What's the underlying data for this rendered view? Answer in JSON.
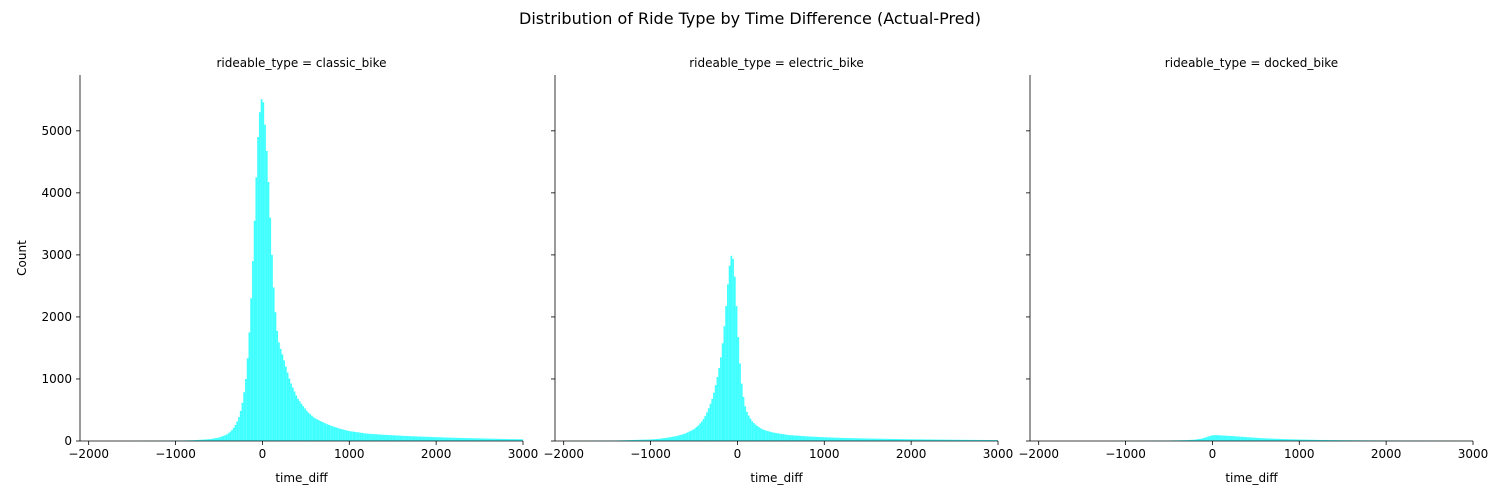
{
  "chart_data": {
    "type": "bar",
    "title": "Distribution of Ride Type by Time Difference (Actual-Pred)",
    "xlabel": "time_diff",
    "ylabel": "Count",
    "xlim": [
      -2100,
      3000
    ],
    "ylim": [
      0,
      5900
    ],
    "xticks": [
      -2000,
      -1000,
      0,
      1000,
      2000,
      3000
    ],
    "xtick_labels": [
      "−2000",
      "−1000",
      "0",
      "1000",
      "2000",
      "3000"
    ],
    "yticks": [
      0,
      1000,
      2000,
      3000,
      4000,
      5000
    ],
    "ytick_labels": [
      "0",
      "1000",
      "2000",
      "3000",
      "4000",
      "5000"
    ],
    "grid": false,
    "bar_color": "#00ffff",
    "bar_opacity": 0.75,
    "bin_width": 20,
    "panels": [
      {
        "title": "rideable_type = classic_bike",
        "anchors": [
          [
            -2100,
            0
          ],
          [
            -1300,
            2
          ],
          [
            -1000,
            6
          ],
          [
            -800,
            12
          ],
          [
            -600,
            30
          ],
          [
            -500,
            55
          ],
          [
            -400,
            110
          ],
          [
            -340,
            190
          ],
          [
            -300,
            280
          ],
          [
            -260,
            420
          ],
          [
            -220,
            680
          ],
          [
            -190,
            1000
          ],
          [
            -160,
            1500
          ],
          [
            -140,
            2000
          ],
          [
            -120,
            2600
          ],
          [
            -100,
            3200
          ],
          [
            -80,
            3900
          ],
          [
            -60,
            4600
          ],
          [
            -40,
            5200
          ],
          [
            -20,
            5400
          ],
          [
            0,
            5620
          ],
          [
            20,
            5300
          ],
          [
            40,
            4900
          ],
          [
            60,
            4450
          ],
          [
            80,
            3900
          ],
          [
            100,
            3300
          ],
          [
            120,
            2700
          ],
          [
            140,
            2250
          ],
          [
            160,
            1900
          ],
          [
            180,
            1650
          ],
          [
            200,
            1530
          ],
          [
            240,
            1350
          ],
          [
            280,
            1150
          ],
          [
            320,
            960
          ],
          [
            360,
            830
          ],
          [
            400,
            700
          ],
          [
            460,
            580
          ],
          [
            520,
            470
          ],
          [
            600,
            370
          ],
          [
            700,
            300
          ],
          [
            800,
            240
          ],
          [
            900,
            195
          ],
          [
            1000,
            160
          ],
          [
            1100,
            140
          ],
          [
            1200,
            120
          ],
          [
            1400,
            100
          ],
          [
            1600,
            85
          ],
          [
            1800,
            72
          ],
          [
            2000,
            62
          ],
          [
            2200,
            52
          ],
          [
            2500,
            42
          ],
          [
            2800,
            32
          ],
          [
            3000,
            28
          ]
        ]
      },
      {
        "title": "rideable_type = electric_bike",
        "anchors": [
          [
            -2100,
            0
          ],
          [
            -1800,
            3
          ],
          [
            -1400,
            8
          ],
          [
            -1000,
            25
          ],
          [
            -900,
            35
          ],
          [
            -800,
            55
          ],
          [
            -700,
            80
          ],
          [
            -600,
            120
          ],
          [
            -500,
            190
          ],
          [
            -450,
            250
          ],
          [
            -400,
            330
          ],
          [
            -360,
            430
          ],
          [
            -320,
            560
          ],
          [
            -280,
            720
          ],
          [
            -240,
            960
          ],
          [
            -200,
            1250
          ],
          [
            -180,
            1450
          ],
          [
            -160,
            1700
          ],
          [
            -140,
            2000
          ],
          [
            -120,
            2350
          ],
          [
            -100,
            2700
          ],
          [
            -80,
            2950
          ],
          [
            -60,
            3020
          ],
          [
            -40,
            2850
          ],
          [
            -20,
            2450
          ],
          [
            0,
            1900
          ],
          [
            20,
            1450
          ],
          [
            40,
            1050
          ],
          [
            60,
            800
          ],
          [
            80,
            620
          ],
          [
            100,
            500
          ],
          [
            140,
            380
          ],
          [
            180,
            300
          ],
          [
            240,
            230
          ],
          [
            300,
            180
          ],
          [
            400,
            140
          ],
          [
            500,
            115
          ],
          [
            600,
            95
          ],
          [
            800,
            75
          ],
          [
            1000,
            60
          ],
          [
            1200,
            50
          ],
          [
            1500,
            40
          ],
          [
            2000,
            28
          ],
          [
            2500,
            20
          ],
          [
            3000,
            15
          ]
        ]
      },
      {
        "title": "rideable_type = docked_bike",
        "anchors": [
          [
            -2100,
            0
          ],
          [
            -1200,
            1
          ],
          [
            -800,
            4
          ],
          [
            -500,
            8
          ],
          [
            -300,
            14
          ],
          [
            -200,
            22
          ],
          [
            -120,
            40
          ],
          [
            -60,
            65
          ],
          [
            -20,
            85
          ],
          [
            0,
            92
          ],
          [
            40,
            95
          ],
          [
            100,
            90
          ],
          [
            200,
            82
          ],
          [
            300,
            72
          ],
          [
            400,
            62
          ],
          [
            500,
            52
          ],
          [
            600,
            43
          ],
          [
            800,
            32
          ],
          [
            1000,
            24
          ],
          [
            1200,
            18
          ],
          [
            1500,
            13
          ],
          [
            2000,
            8
          ],
          [
            2500,
            5
          ],
          [
            3000,
            3
          ]
        ]
      }
    ]
  }
}
